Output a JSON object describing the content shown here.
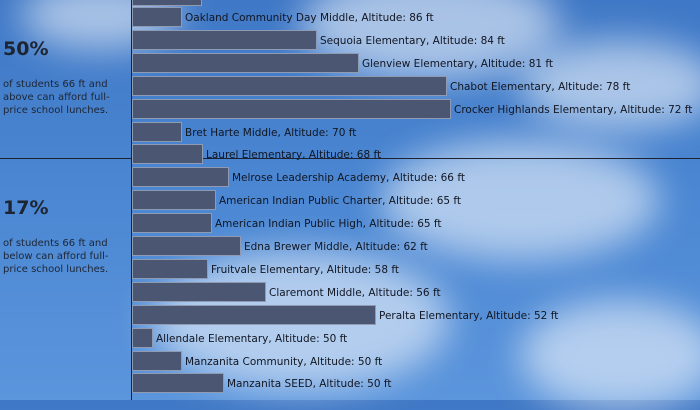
{
  "summary": [
    {
      "percent": "50%",
      "text": "of students 66 ft and above can afford full-price school lunches."
    },
    {
      "percent": "17%",
      "text": "of students 66 ft and below can afford full-price school lunches."
    }
  ],
  "chart_data": {
    "type": "bar",
    "orientation": "horizontal",
    "label_format": "{name}, Altitude: {value} ft",
    "categories": [
      "Oakland Community Day Middle",
      "Sequoia Elementary",
      "Glenview Elementary",
      "Chabot Elementary",
      "Crocker Highlands Elementary",
      "Bret Harte Middle",
      "Laurel Elementary",
      "Melrose Leadership Academy",
      "American Indian Public Charter",
      "American Indian Public High",
      "Edna Brewer Middle",
      "Fruitvale Elementary",
      "Claremont Middle",
      "Peralta Elementary",
      "Allendale Elementary",
      "Manzanita Community",
      "Manzanita SEED"
    ],
    "altitudes": [
      86,
      84,
      81,
      78,
      72,
      70,
      68,
      66,
      65,
      65,
      62,
      58,
      56,
      52,
      50,
      50,
      50
    ],
    "values": [
      0.12,
      0.44,
      0.54,
      0.75,
      0.76,
      0.12,
      0.17,
      0.23,
      0.2,
      0.19,
      0.26,
      0.18,
      0.32,
      0.58,
      0.05,
      0.12,
      0.22
    ],
    "labels": [
      "Oakland Community Day Middle, Altitude: 86 ft",
      "Sequoia Elementary, Altitude: 84 ft",
      "Glenview Elementary, Altitude: 81 ft",
      "Chabot Elementary, Altitude: 78 ft",
      "Crocker Highlands Elementary, Altitude: 72 ft",
      "Bret Harte Middle, Altitude: 70 ft",
      "Laurel Elementary, Altitude: 68 ft",
      "Melrose Leadership Academy, Altitude: 66 ft",
      "American Indian Public Charter, Altitude: 65 ft",
      "American Indian Public High, Altitude: 65 ft",
      "Edna Brewer Middle, Altitude: 62 ft",
      "Fruitvale Elementary, Altitude: 58 ft",
      "Claremont Middle, Altitude: 56 ft",
      "Peralta Elementary, Altitude: 52 ft",
      "Allendale Elementary, Altitude: 50 ft",
      "Manzanita Community, Altitude: 50 ft",
      "Manzanita SEED, Altitude: 50 ft"
    ]
  },
  "colors": {
    "bar": "#4a5672",
    "bar_border": "#8f9bb3",
    "text": "#111622"
  }
}
